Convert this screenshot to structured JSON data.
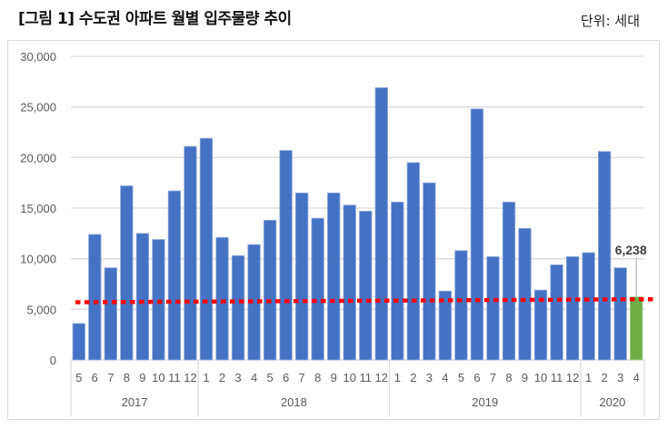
{
  "header": {
    "title": "[그림 1] 수도권 아파트 월별 입주물량 추이",
    "unit": "단위: 세대"
  },
  "colors": {
    "bar": "#4472c4",
    "highlight_bar": "#70ad47",
    "reference_line": "#ff0000",
    "gridline": "#d9d9d9",
    "axis_text": "#595959"
  },
  "chart_data": {
    "type": "bar",
    "title": "[그림 1] 수도권 아파트 월별 입주물량 추이",
    "unit_label": "단위: 세대",
    "xlabel": "",
    "ylabel": "",
    "ylim": [
      0,
      30000
    ],
    "yticks": [
      0,
      5000,
      10000,
      15000,
      20000,
      25000,
      30000
    ],
    "ytick_labels": [
      "0",
      "5,000",
      "10,000",
      "15,000",
      "20,000",
      "25,000",
      "30,000"
    ],
    "grid": true,
    "legend": null,
    "year_groups": [
      {
        "year": "2017",
        "months": [
          "5",
          "6",
          "7",
          "8",
          "9",
          "10",
          "11",
          "12"
        ]
      },
      {
        "year": "2018",
        "months": [
          "1",
          "2",
          "3",
          "4",
          "5",
          "6",
          "7",
          "8",
          "9",
          "10",
          "11",
          "12"
        ]
      },
      {
        "year": "2019",
        "months": [
          "1",
          "2",
          "3",
          "4",
          "5",
          "6",
          "7",
          "8",
          "9",
          "10",
          "11",
          "12"
        ]
      },
      {
        "year": "2020",
        "months": [
          "1",
          "2",
          "3",
          "4"
        ]
      }
    ],
    "categories": [
      "2017-5",
      "2017-6",
      "2017-7",
      "2017-8",
      "2017-9",
      "2017-10",
      "2017-11",
      "2017-12",
      "2018-1",
      "2018-2",
      "2018-3",
      "2018-4",
      "2018-5",
      "2018-6",
      "2018-7",
      "2018-8",
      "2018-9",
      "2018-10",
      "2018-11",
      "2018-12",
      "2019-1",
      "2019-2",
      "2019-3",
      "2019-4",
      "2019-5",
      "2019-6",
      "2019-7",
      "2019-8",
      "2019-9",
      "2019-10",
      "2019-11",
      "2019-12",
      "2020-1",
      "2020-2",
      "2020-3",
      "2020-4"
    ],
    "values": [
      3600,
      12400,
      9100,
      17200,
      12500,
      11900,
      16700,
      21100,
      21900,
      12100,
      10300,
      11400,
      13800,
      20700,
      16500,
      14000,
      16500,
      15300,
      14700,
      26900,
      15600,
      19500,
      17500,
      6800,
      10800,
      24800,
      10200,
      15600,
      13000,
      6900,
      9400,
      10200,
      10600,
      20600,
      9100,
      6238
    ],
    "highlight_index": 35,
    "annotations": [
      {
        "category": "2020-4",
        "text": "6,238",
        "value": 6238
      }
    ],
    "reference_line": {
      "style": "dotted",
      "color": "#ff0000",
      "start_value": 5700,
      "end_value": 6000
    }
  }
}
